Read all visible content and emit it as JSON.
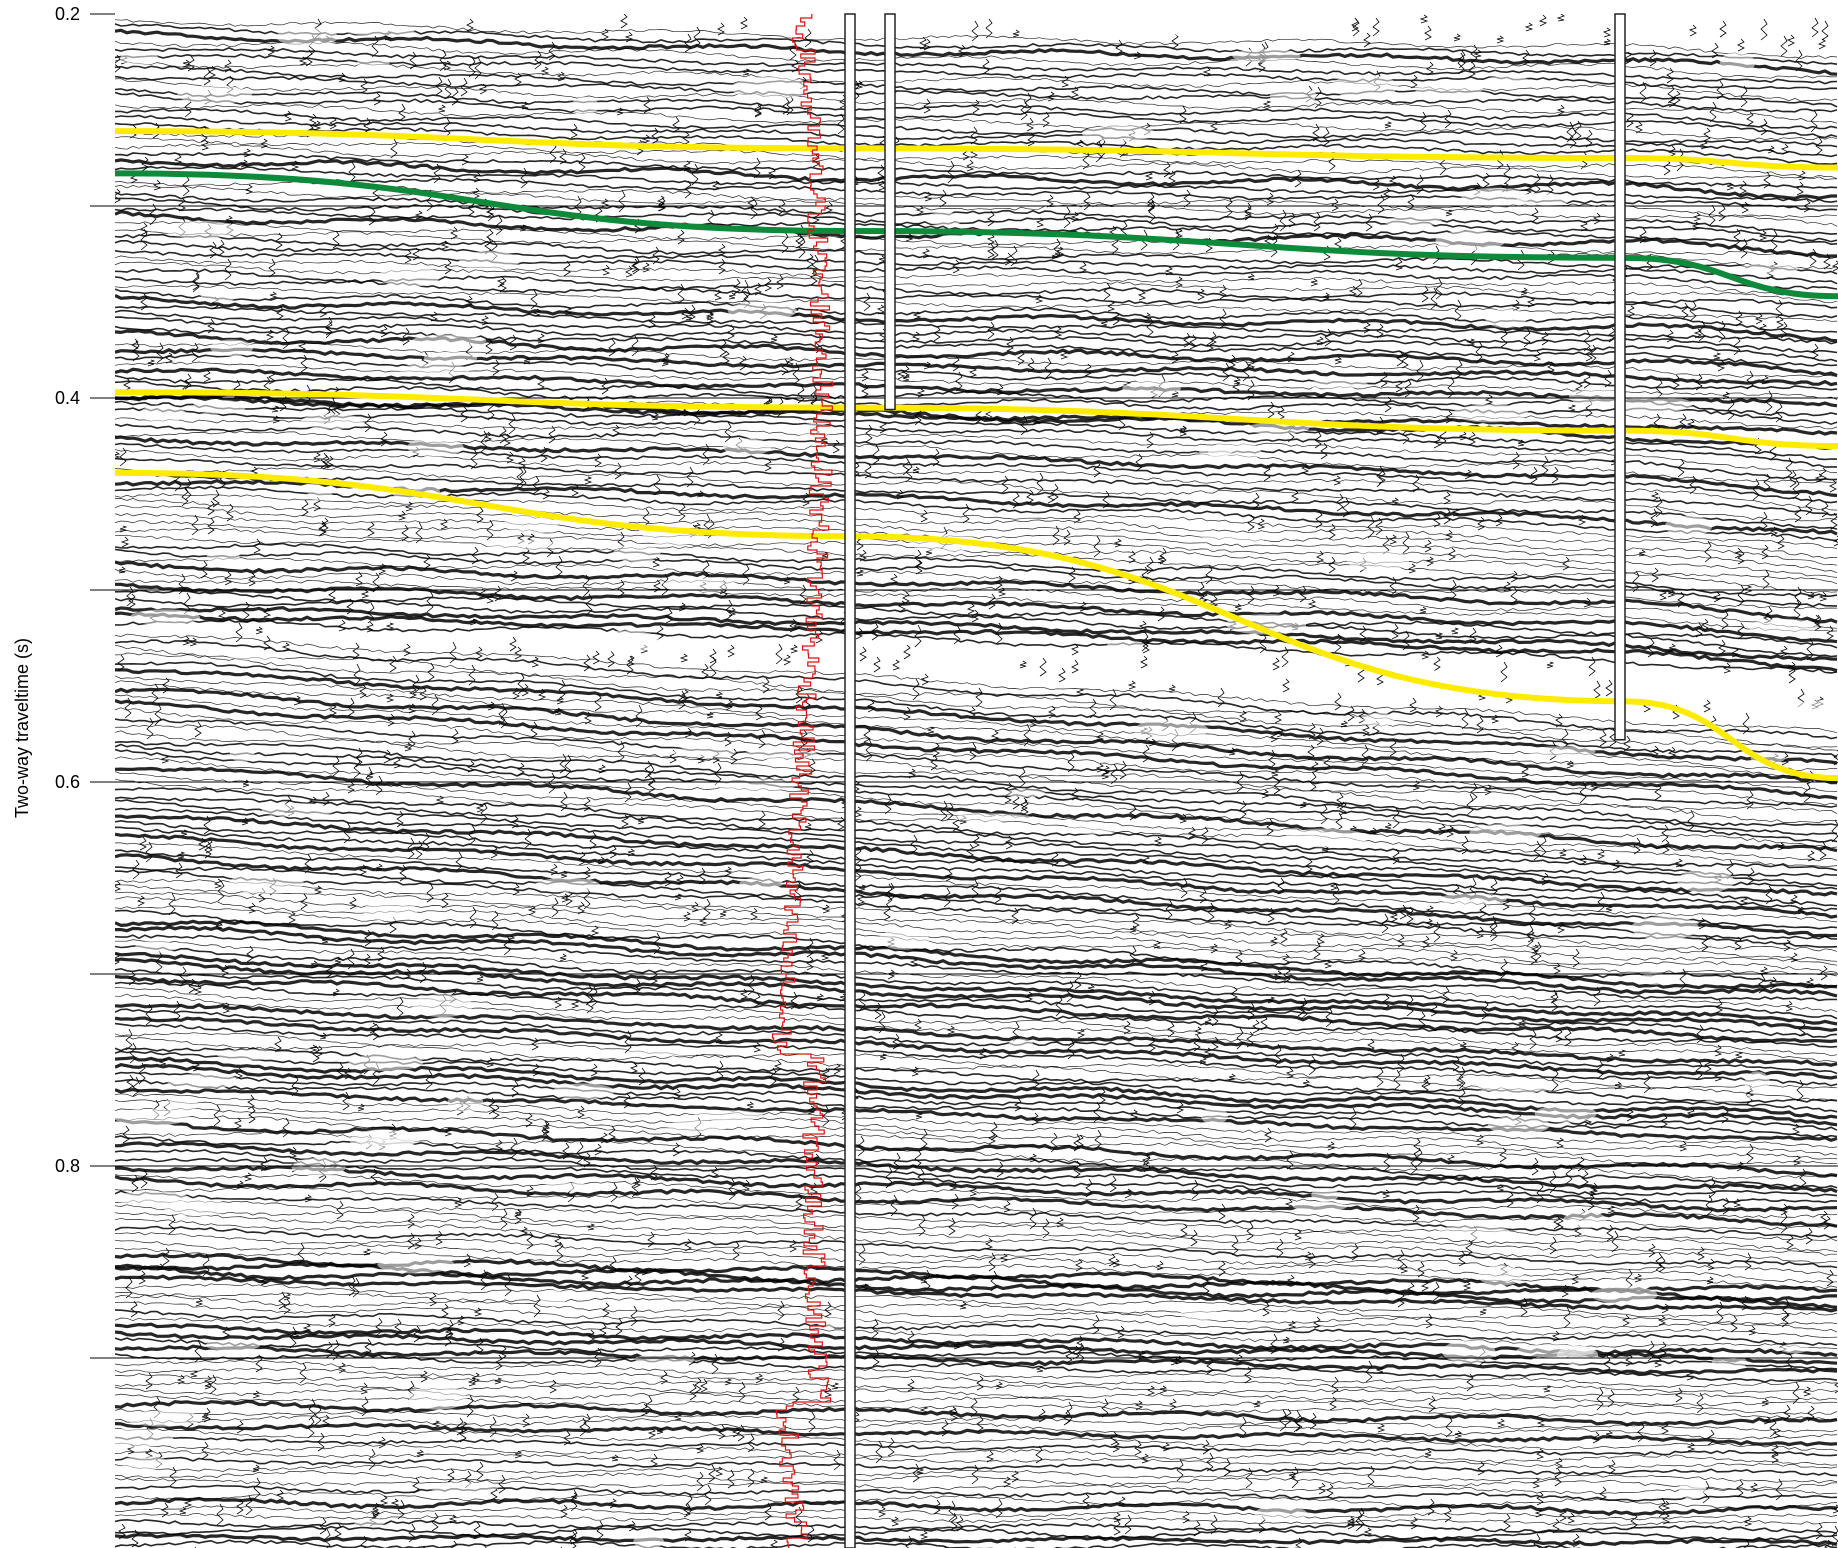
{
  "y_axis": {
    "title": "Two-way traveltime (s)",
    "tick_labels": [
      "0.2",
      "0.4",
      "0.6",
      "0.8"
    ],
    "range": [
      0.2,
      1.0
    ],
    "gridlines_at": [
      0.3,
      0.4,
      0.5,
      0.6,
      0.7,
      0.8,
      0.9
    ]
  },
  "colors": {
    "background": "#ffffff",
    "wiggle": "#000000",
    "gridline": "#000000",
    "horizon_yellow": "#ffeb00",
    "horizon_green": "#0e8a3a",
    "well_log": "#e01010",
    "borehole_fill": "#ffffff",
    "borehole_outline": "#222222"
  },
  "horizons": [
    {
      "color": "yellow",
      "t": [
        0.261,
        0.27,
        0.275,
        0.28
      ]
    },
    {
      "color": "green",
      "t": [
        0.283,
        0.313,
        0.327,
        0.347
      ]
    },
    {
      "color": "yellow",
      "t": [
        0.397,
        0.405,
        0.417,
        0.425
      ]
    },
    {
      "color": "yellow",
      "t": [
        0.439,
        0.472,
        0.558,
        0.598
      ]
    }
  ],
  "boreholes": [
    {
      "bottom_t": 1.0
    },
    {
      "bottom_t": 0.406
    },
    {
      "bottom_t": 0.578
    }
  ],
  "well_log": {
    "top_t": 0.2,
    "bottom_t": 1.0
  }
}
